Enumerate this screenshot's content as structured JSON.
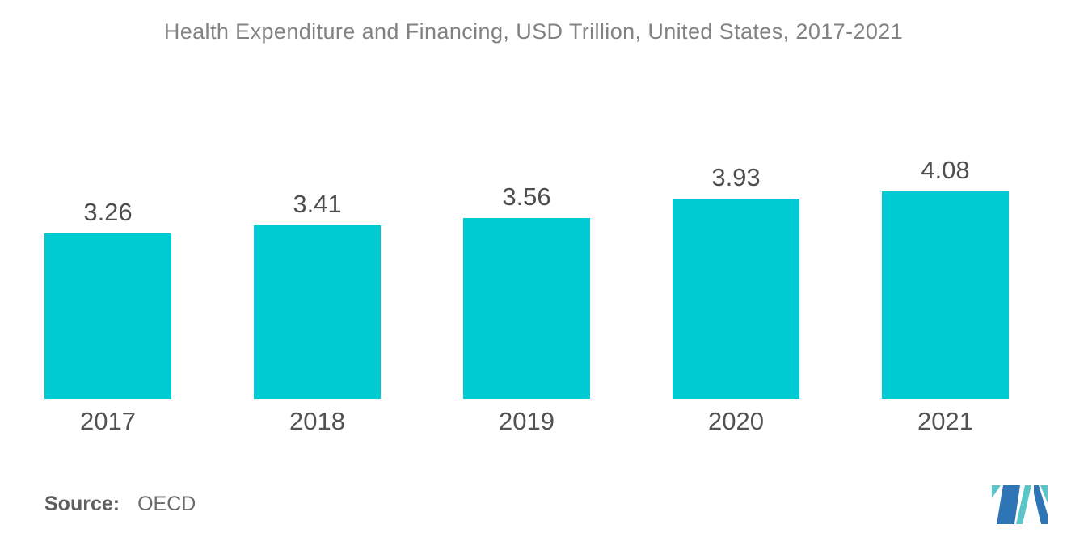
{
  "chart_data": {
    "type": "bar",
    "title": "Health Expenditure and Financing, USD Trillion, United States, 2017-2021",
    "categories": [
      "2017",
      "2018",
      "2019",
      "2020",
      "2021"
    ],
    "values": [
      3.26,
      3.41,
      3.56,
      3.93,
      4.08
    ],
    "value_labels": [
      "3.26",
      "3.41",
      "3.56",
      "3.93",
      "4.08"
    ],
    "xlabel": "",
    "ylabel": "",
    "ylim": [
      0,
      4.5
    ],
    "grid": false,
    "legend": "none",
    "axes_visible": false,
    "bar_color": "#00CBD2"
  },
  "source": {
    "label": "Source:",
    "value": "OECD"
  },
  "logo": {
    "name": "mordor-intelligence-mark"
  },
  "colors": {
    "bar": "#00CBD2",
    "title_text": "#848185",
    "value_text": "#4E4E50",
    "category_text": "#525254",
    "source_text": "#5D5D5D",
    "logo_blue": "#2E75B5",
    "logo_teal": "#5BC6C9"
  }
}
